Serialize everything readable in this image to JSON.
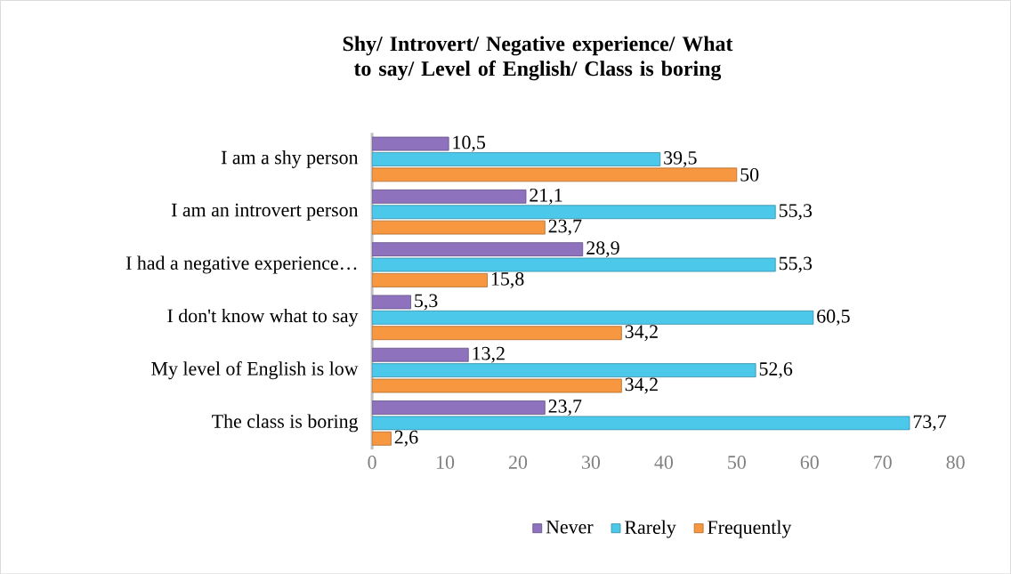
{
  "chart_data": {
    "type": "bar",
    "orientation": "horizontal",
    "title": "Shy/ Introvert/  Negative experience/ What to say/ Level of English/  Class is boring",
    "categories": [
      "I am a shy person",
      "I am an introvert person",
      "I had a negative experience…",
      "I don't know what to say",
      "My level of English is low",
      "The class is boring"
    ],
    "series": [
      {
        "name": "Never",
        "color": "#8e72bd",
        "values": [
          10.5,
          21.1,
          28.9,
          5.3,
          13.2,
          23.7
        ],
        "value_labels": [
          "10,5",
          "21,1",
          "28,9",
          "5,3",
          "13,2",
          "23,7"
        ]
      },
      {
        "name": "Rarely",
        "color": "#4bc8ea",
        "values": [
          39.5,
          55.3,
          55.3,
          60.5,
          52.6,
          73.7
        ],
        "value_labels": [
          "39,5",
          "55,3",
          "55,3",
          "60,5",
          "52,6",
          "73,7"
        ]
      },
      {
        "name": "Frequently",
        "color": "#f7973f",
        "values": [
          50,
          23.7,
          15.8,
          34.2,
          34.2,
          2.6
        ],
        "value_labels": [
          "50",
          "23,7",
          "15,8",
          "34,2",
          "34,2",
          "2,6"
        ]
      }
    ],
    "xlim": [
      0,
      80
    ],
    "xticks": [
      0,
      10,
      20,
      30,
      40,
      50,
      60,
      70,
      80
    ],
    "legend": "bottom"
  }
}
